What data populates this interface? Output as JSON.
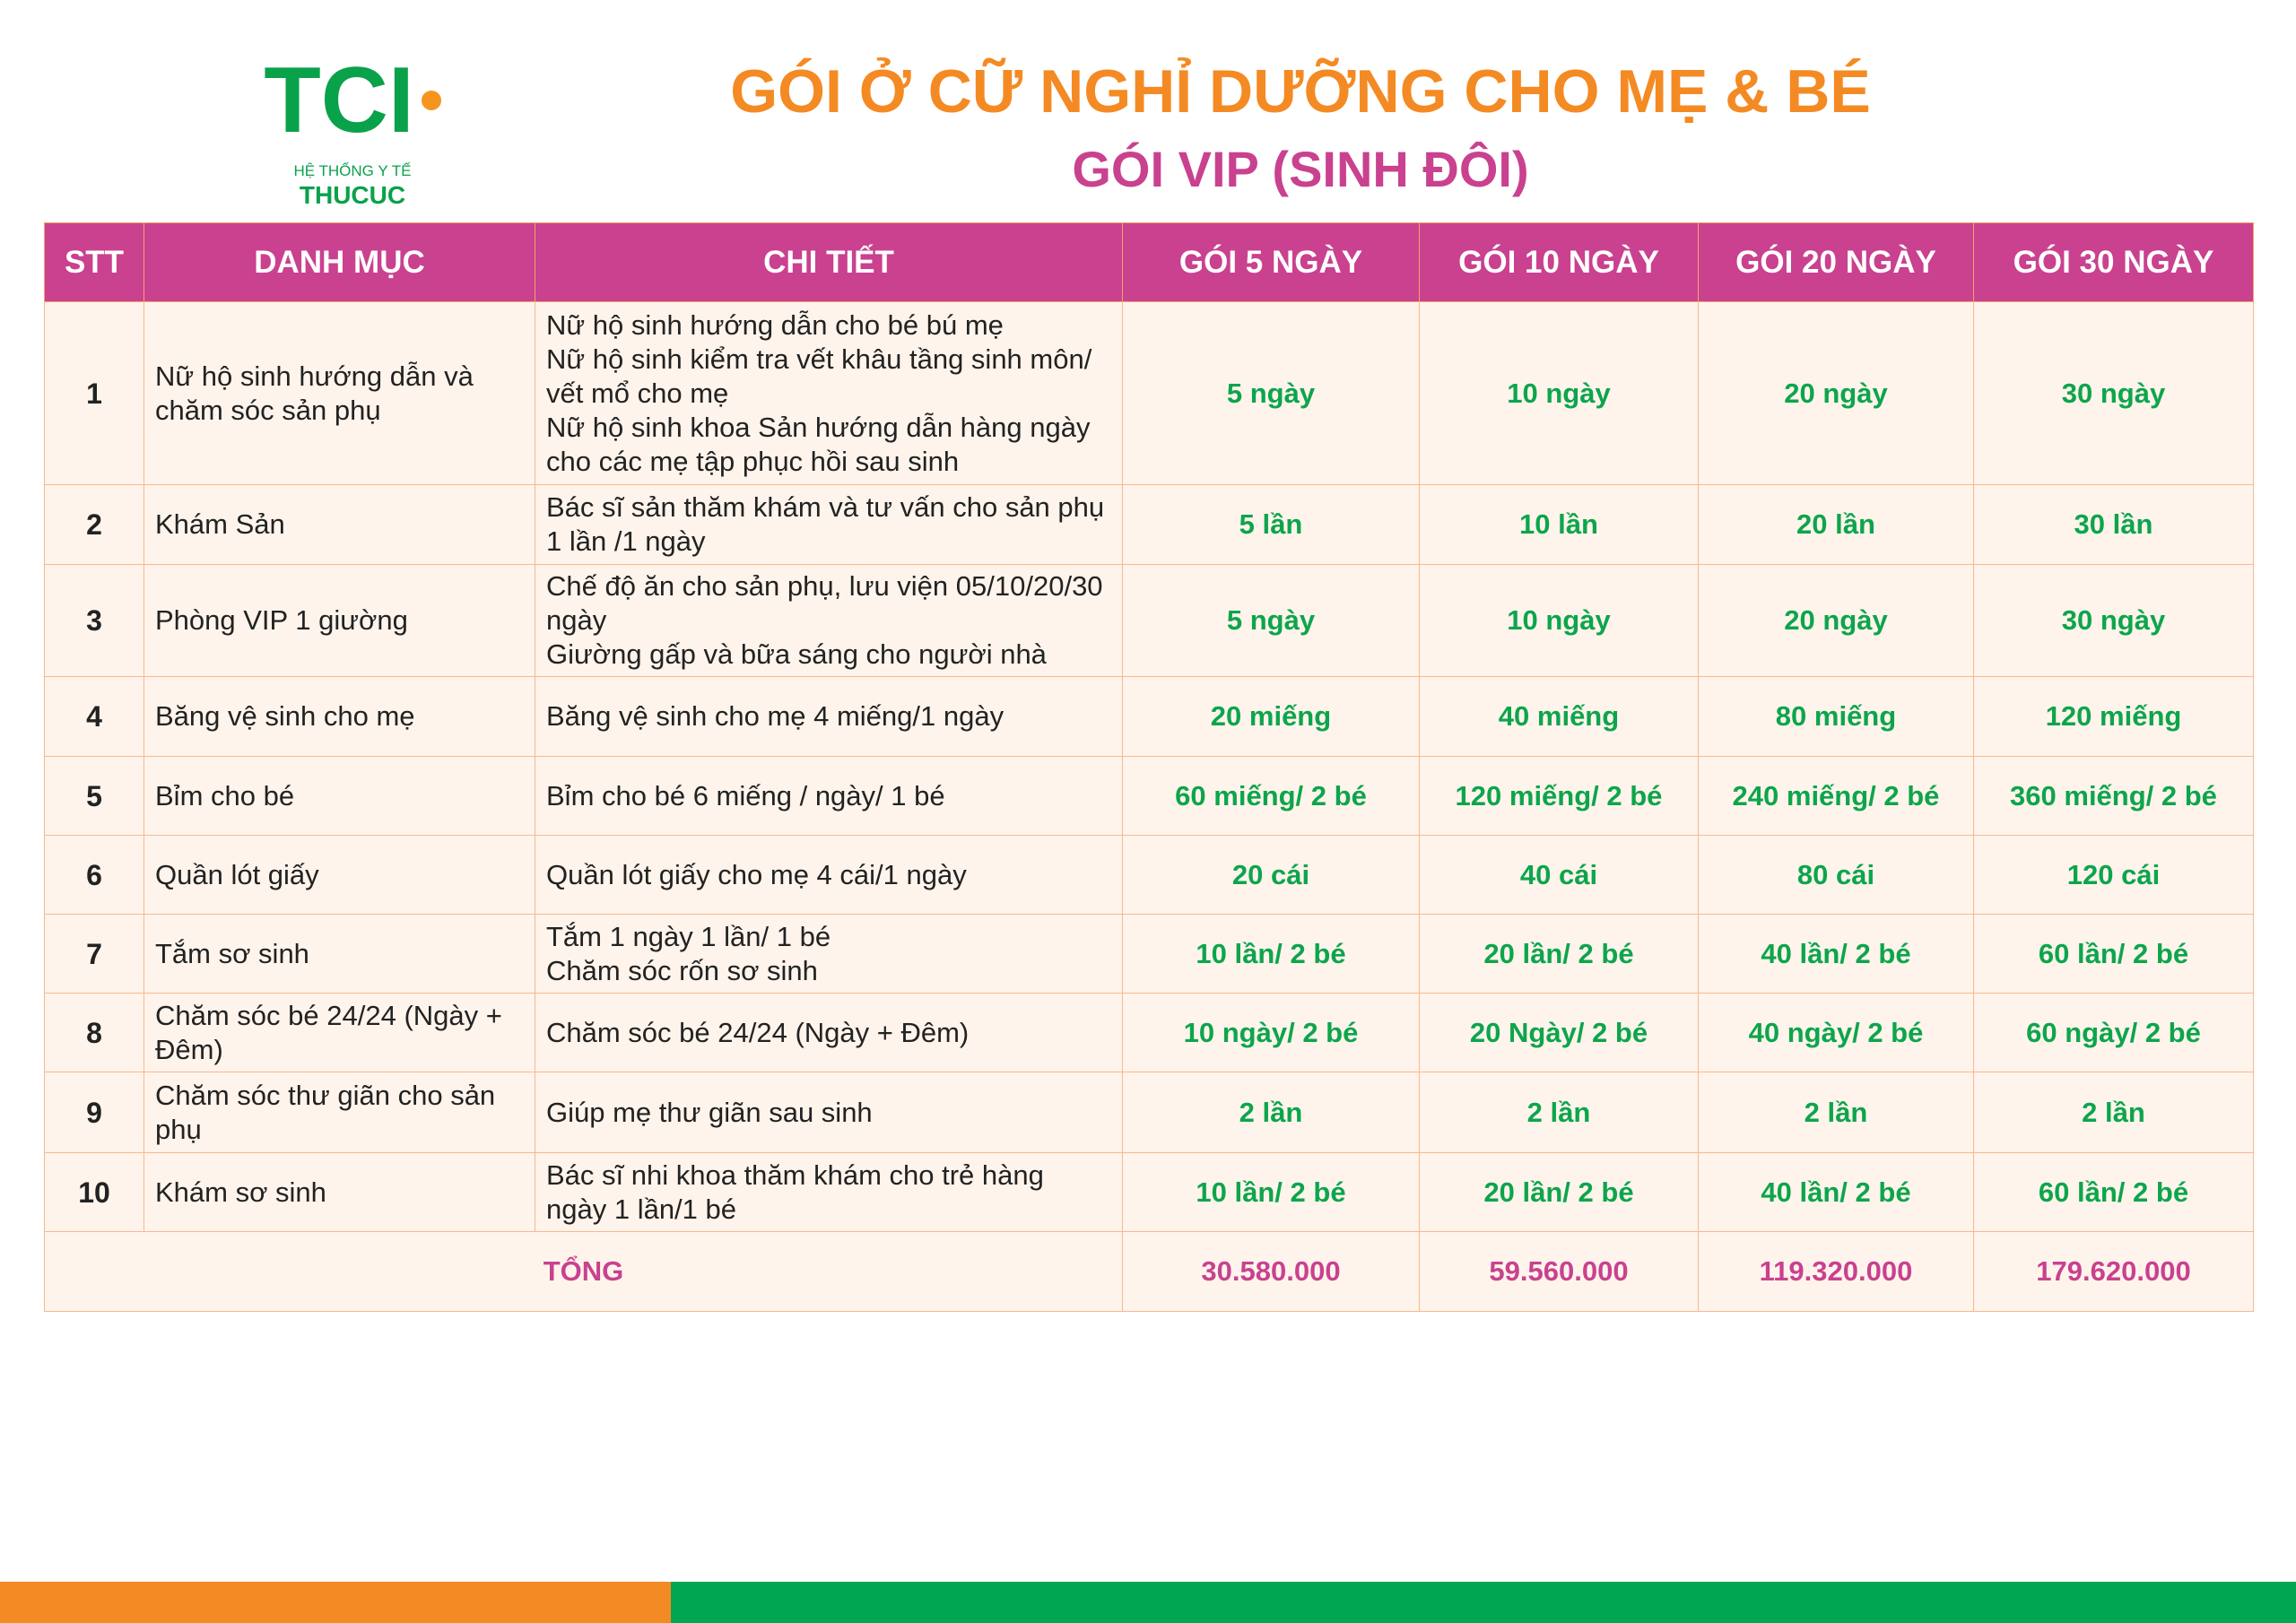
{
  "logo": {
    "mark": "TCI",
    "line1": "HỆ THỐNG Y TẾ",
    "line2": "THUCUC",
    "colors": {
      "green": "#0aa14b",
      "orange": "#f7941d"
    }
  },
  "title": "GÓI Ở CỮ NGHỈ DƯỠNG CHO MẸ & BÉ",
  "subtitle": "GÓI VIP (SINH ĐÔI)",
  "headers": [
    "STT",
    "DANH MỤC",
    "CHI TIẾT",
    "GÓI 5 NGÀY",
    "GÓI 10 NGÀY",
    "GÓI 20 NGÀY",
    "GÓI 30 NGÀY"
  ],
  "rows": [
    {
      "stt": "1",
      "cat": "Nữ hộ sinh hướng dẫn và chăm sóc sản phụ",
      "detail": [
        "Nữ hộ sinh hướng dẫn cho bé bú mẹ",
        "Nữ hộ sinh kiểm tra vết khâu tầng sinh môn/ vết mổ cho mẹ",
        "Nữ hộ sinh khoa Sản hướng dẫn hàng ngày cho các mẹ tập phục hồi sau sinh"
      ],
      "v": [
        "5 ngày",
        "10 ngày",
        "20 ngày",
        "30 ngày"
      ]
    },
    {
      "stt": "2",
      "cat": "Khám Sản",
      "detail": [
        "Bác sĩ sản thăm khám và tư vấn cho sản phụ 1 lần /1 ngày"
      ],
      "v": [
        "5 lần",
        "10 lần",
        "20 lần",
        "30 lần"
      ]
    },
    {
      "stt": "3",
      "cat": "Phòng VIP 1 giường",
      "detail": [
        "Chế độ ăn cho sản phụ, lưu viện 05/10/20/30 ngày",
        "Giường gấp và bữa sáng cho người nhà"
      ],
      "v": [
        "5 ngày",
        "10 ngày",
        "20 ngày",
        "30 ngày"
      ]
    },
    {
      "stt": "4",
      "cat": "Băng vệ sinh cho mẹ",
      "detail": [
        "Băng vệ sinh cho mẹ 4 miếng/1 ngày"
      ],
      "v": [
        "20 miếng",
        "40 miếng",
        "80 miếng",
        "120 miếng"
      ]
    },
    {
      "stt": "5",
      "cat": "Bỉm cho bé",
      "detail": [
        "Bỉm cho bé 6 miếng / ngày/ 1 bé"
      ],
      "v": [
        "60 miếng/ 2 bé",
        "120 miếng/ 2 bé",
        "240 miếng/ 2 bé",
        "360 miếng/ 2 bé"
      ]
    },
    {
      "stt": "6",
      "cat": "Quần lót giấy",
      "detail": [
        "Quần lót giấy cho mẹ 4 cái/1 ngày"
      ],
      "v": [
        "20 cái",
        "40 cái",
        "80 cái",
        "120 cái"
      ]
    },
    {
      "stt": "7",
      "cat": "Tắm sơ sinh",
      "detail": [
        "Tắm 1 ngày 1 lần/ 1 bé",
        "Chăm sóc rốn sơ sinh"
      ],
      "v": [
        "10 lần/ 2 bé",
        "20 lần/ 2 bé",
        "40 lần/ 2 bé",
        "60 lần/ 2 bé"
      ]
    },
    {
      "stt": "8",
      "cat": "Chăm sóc bé 24/24 (Ngày + Đêm)",
      "detail": [
        "Chăm sóc bé 24/24 (Ngày + Đêm)"
      ],
      "v": [
        "10 ngày/ 2 bé",
        "20 Ngày/ 2 bé",
        "40 ngày/ 2 bé",
        "60 ngày/ 2 bé"
      ]
    },
    {
      "stt": "9",
      "cat": "Chăm sóc thư giãn cho sản phụ",
      "detail": [
        "Giúp mẹ thư giãn sau sinh"
      ],
      "v": [
        "2 lần",
        "2 lần",
        "2 lần",
        "2 lần"
      ]
    },
    {
      "stt": "10",
      "cat": "Khám sơ sinh",
      "detail": [
        "Bác sĩ nhi khoa thăm khám cho trẻ hàng ngày 1 lần/1 bé"
      ],
      "v": [
        "10 lần/ 2 bé",
        "20 lần/ 2 bé",
        "40 lần/ 2 bé",
        "60 lần/ 2 bé"
      ]
    }
  ],
  "total": {
    "label": "TỔNG",
    "values": [
      "30.580.000",
      "59.560.000",
      "119.320.000",
      "179.620.000"
    ]
  },
  "colors": {
    "header": "#c9418f",
    "title": "#f48a23",
    "value": "#0da54b",
    "cell_bg": "#fef4ec",
    "border": "#f5a26a",
    "footer_orange": "#f48a23",
    "footer_green": "#00a651"
  }
}
